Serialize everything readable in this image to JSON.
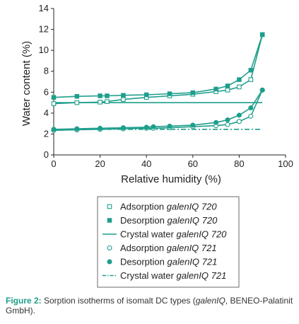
{
  "colors": {
    "series": "#1e9e8c",
    "axis": "#222222",
    "caption_label": "#1e9e8c"
  },
  "chart_data": {
    "type": "line",
    "title": "",
    "xlabel": "Relative humidity (%)",
    "ylabel": "Water content (%)",
    "xlim": [
      0,
      100
    ],
    "ylim": [
      0,
      14
    ],
    "xticks": [
      0,
      20,
      40,
      60,
      80,
      100
    ],
    "yticks": [
      0,
      2,
      4,
      6,
      8,
      10,
      12,
      14
    ],
    "grid": false,
    "legend_position": "below",
    "series": [
      {
        "name": "Adsorption galenIQ 720",
        "marker": "open-square",
        "line": "solid",
        "x": [
          0,
          10,
          20,
          23,
          30,
          40,
          50,
          60,
          70,
          75,
          80,
          85,
          90
        ],
        "y": [
          4.9,
          5.0,
          5.05,
          5.1,
          5.3,
          5.5,
          5.65,
          5.8,
          6.05,
          6.2,
          6.5,
          7.2,
          11.5
        ]
      },
      {
        "name": "Desorption galenIQ 720",
        "marker": "filled-square",
        "line": "solid",
        "x": [
          0,
          10,
          20,
          23,
          30,
          40,
          50,
          60,
          70,
          75,
          80,
          85,
          90
        ],
        "y": [
          5.5,
          5.6,
          5.65,
          5.65,
          5.7,
          5.75,
          5.85,
          5.95,
          6.3,
          6.6,
          7.2,
          8.1,
          11.5
        ]
      },
      {
        "name": "Crystal water galenIQ 720",
        "marker": "none",
        "line": "solid",
        "x": [
          0,
          90
        ],
        "y": [
          5.0,
          5.0
        ]
      },
      {
        "name": "Adsorption galenIQ 721",
        "marker": "open-circle",
        "line": "solid",
        "x": [
          0,
          10,
          20,
          30,
          40,
          43,
          50,
          60,
          70,
          75,
          80,
          85,
          90
        ],
        "y": [
          2.35,
          2.4,
          2.45,
          2.5,
          2.55,
          2.55,
          2.6,
          2.7,
          2.8,
          2.9,
          3.2,
          3.7,
          6.2
        ]
      },
      {
        "name": "Desorption galenIQ 721",
        "marker": "filled-circle",
        "line": "solid",
        "x": [
          0,
          10,
          20,
          30,
          40,
          43,
          50,
          60,
          70,
          75,
          80,
          85,
          90
        ],
        "y": [
          2.45,
          2.5,
          2.55,
          2.6,
          2.65,
          2.7,
          2.75,
          2.85,
          3.1,
          3.35,
          3.8,
          4.5,
          6.2
        ]
      },
      {
        "name": "Crystal water galenIQ 721",
        "marker": "none",
        "line": "dash-dot",
        "x": [
          0,
          90
        ],
        "y": [
          2.45,
          2.45
        ]
      }
    ],
    "legend": [
      {
        "prefix": "Adsorption",
        "product": "galenIQ 720"
      },
      {
        "prefix": "Desorption",
        "product": "galenIQ 720"
      },
      {
        "prefix": "Crystal water",
        "product": "galenIQ 720"
      },
      {
        "prefix": "Adsorption",
        "product": "galenIQ 721"
      },
      {
        "prefix": "Desorption",
        "product": "galenIQ 721"
      },
      {
        "prefix": "Crystal water",
        "product": "galenIQ 721"
      }
    ]
  },
  "caption": {
    "label": "Figure 2:",
    "text_before": " Sorption isotherms of isomalt DC types (",
    "italic": "galenIQ",
    "text_after": ", BENEO-Palatinit GmbH)."
  }
}
